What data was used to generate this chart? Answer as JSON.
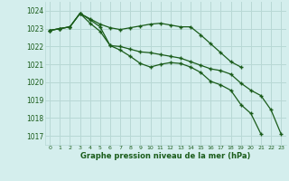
{
  "title": "Graphe pression niveau de la mer (hPa)",
  "background_color": "#d4eeed",
  "grid_color": "#b8d8d5",
  "line_color": "#1a5c1a",
  "marker_color": "#1a5c1a",
  "ylim": [
    1016.5,
    1024.5
  ],
  "xlim": [
    -0.5,
    23.5
  ],
  "yticks": [
    1017,
    1018,
    1019,
    1020,
    1021,
    1022,
    1023,
    1024
  ],
  "xticks": [
    0,
    1,
    2,
    3,
    4,
    5,
    6,
    7,
    8,
    9,
    10,
    11,
    12,
    13,
    14,
    15,
    16,
    17,
    18,
    19,
    20,
    21,
    22,
    23
  ],
  "series": [
    [
      1022.9,
      1023.0,
      1023.1,
      1023.85,
      1023.3,
      1022.85,
      1022.05,
      1022.0,
      1021.85,
      1021.7,
      1021.65,
      1021.55,
      1021.45,
      1021.35,
      1021.15,
      1020.95,
      1020.75,
      1020.65,
      1020.45,
      1019.95,
      1019.55,
      1019.25,
      1018.45,
      1017.1
    ],
    [
      1022.9,
      1023.0,
      1023.1,
      1023.85,
      1023.5,
      1023.1,
      1022.05,
      1021.8,
      1021.45,
      1021.05,
      1020.85,
      1021.0,
      1021.1,
      1021.05,
      1020.85,
      1020.55,
      1020.05,
      1019.85,
      1019.55,
      1018.75,
      1018.25,
      1017.1,
      null,
      null
    ],
    [
      1022.9,
      1023.0,
      1023.1,
      1023.85,
      1023.55,
      1023.25,
      1023.05,
      1022.95,
      1023.05,
      1023.15,
      1023.25,
      1023.3,
      1023.2,
      1023.1,
      1023.1,
      1022.65,
      1022.15,
      1021.65,
      1021.15,
      1020.85,
      null,
      null,
      null,
      null
    ]
  ]
}
